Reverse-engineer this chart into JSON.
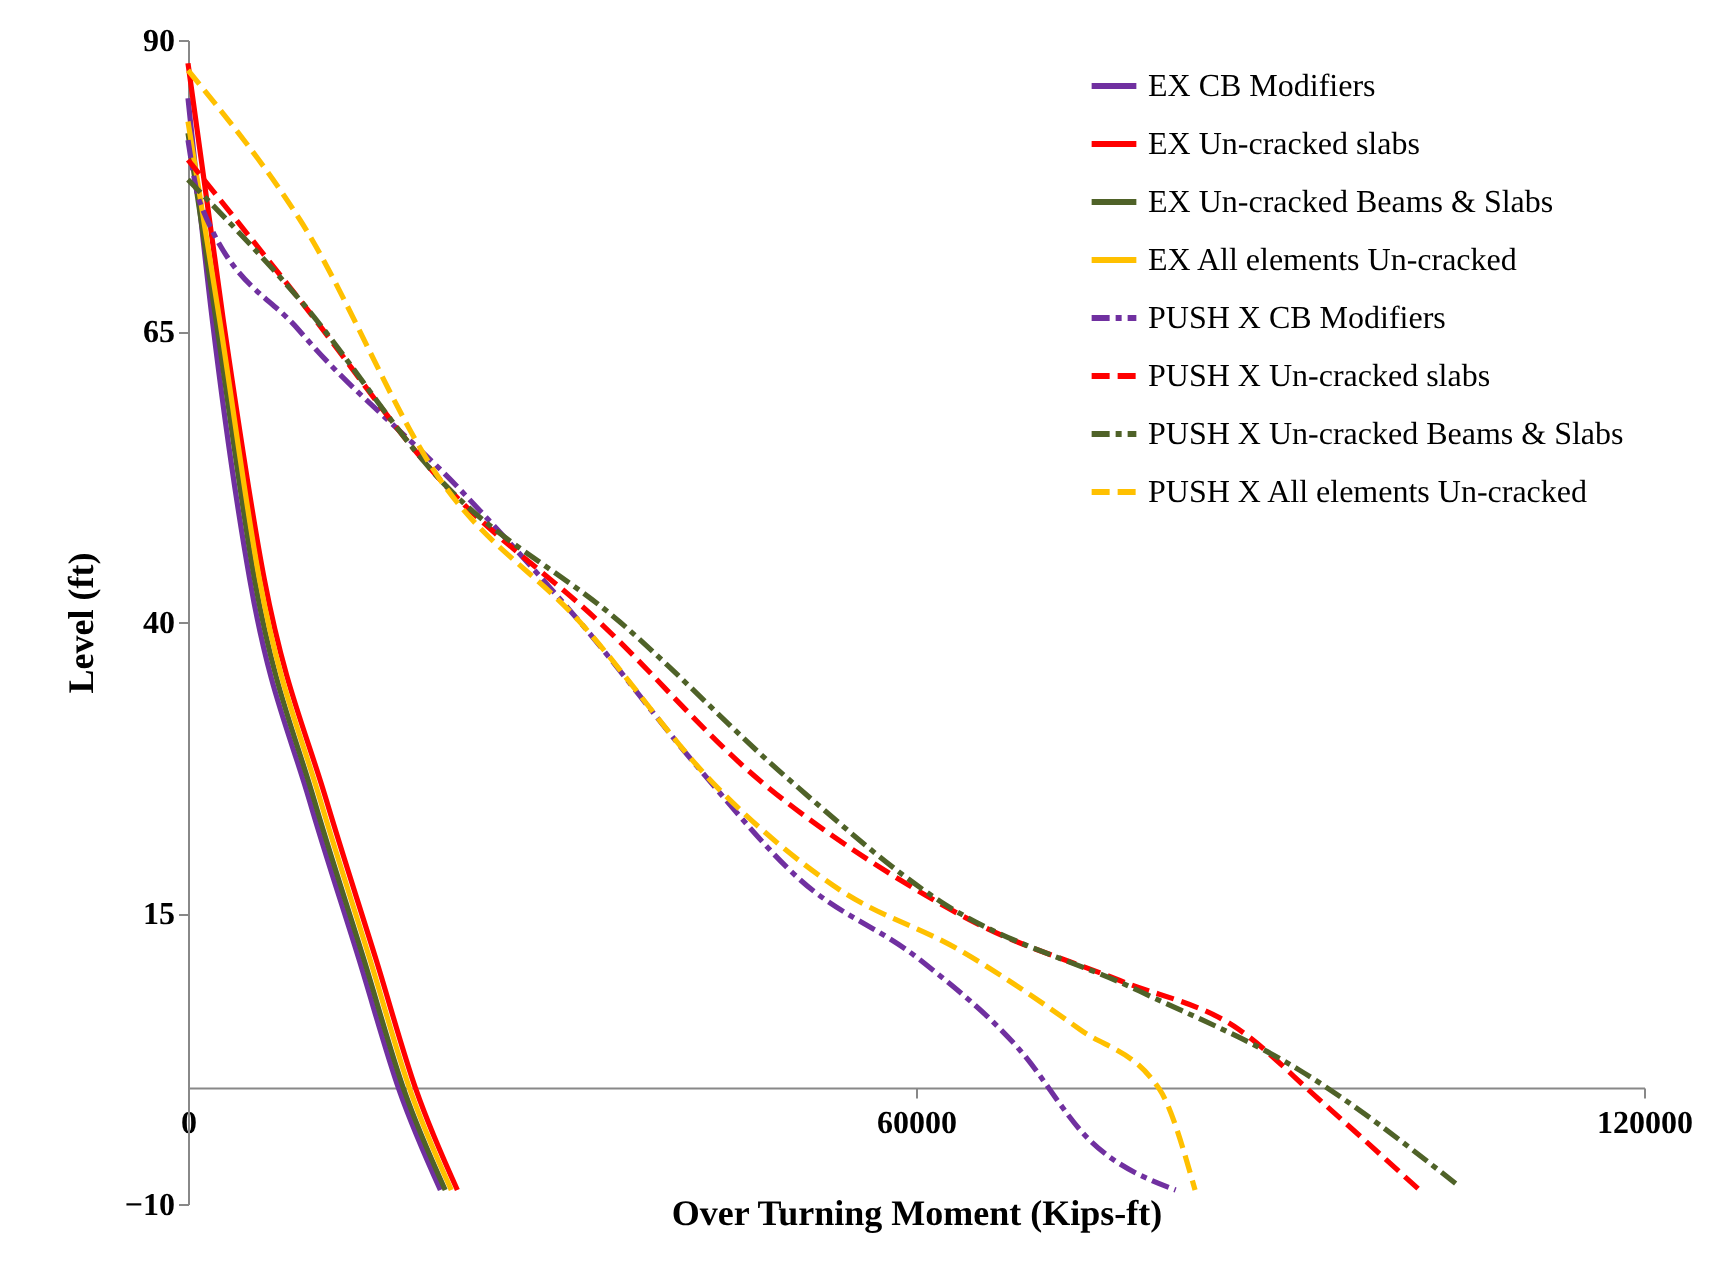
{
  "chart_data": {
    "type": "line",
    "xlabel": "Over Turning Moment (Kips-ft)",
    "ylabel": "Level (ft)",
    "xlim": [
      0,
      120000
    ],
    "xticks": [
      0,
      60000,
      120000
    ],
    "ylim": [
      -10,
      90
    ],
    "yticks": [
      -10,
      15,
      40,
      65,
      90
    ],
    "grid": false,
    "legend": "top right",
    "marker": "none",
    "series": [
      {
        "name": "EX CB Modifiers",
        "color": "#7030a0",
        "line_style": "solid",
        "x": [
          0,
          2000,
          5100,
          10000,
          14100,
          17400,
          20800
        ],
        "values": [
          85,
          66,
          43.6,
          24.7,
          11,
          -0.2,
          -8.8
        ]
      },
      {
        "name": "EX Un-cracked slabs",
        "color": "#ff0000",
        "line_style": "solid",
        "x": [
          0,
          2900,
          6300,
          11400,
          15500,
          18800,
          22200
        ],
        "values": [
          88,
          66,
          43.6,
          24.7,
          11,
          -0.2,
          -8.8
        ]
      },
      {
        "name": "EX Un-cracked Beams & Slabs",
        "color": "#4f6228",
        "line_style": "solid",
        "x": [
          0,
          2300,
          5500,
          10400,
          14500,
          17800,
          21200
        ],
        "values": [
          82,
          66,
          43.6,
          24.7,
          11,
          -0.2,
          -8.8
        ]
      },
      {
        "name": "EX All elements Un-cracked",
        "color": "#ffc000",
        "line_style": "solid",
        "x": [
          0,
          2600,
          5900,
          10900,
          15000,
          18300,
          21700
        ],
        "values": [
          83,
          66,
          43.6,
          24.7,
          11,
          -0.2,
          -8.8
        ]
      },
      {
        "name": "PUSH X CB Modifiers",
        "color": "#7030a0",
        "line_style": "dashdot",
        "x": [
          0,
          1000,
          9200,
          22400,
          32300,
          42200,
          50400,
          60300,
          68500,
          74300,
          81400
        ],
        "values": [
          81.4,
          76,
          65,
          51.4,
          40,
          27.3,
          17.9,
          11,
          3.3,
          -4.5,
          -8.8
        ]
      },
      {
        "name": "PUSH X Un-cracked slabs",
        "color": "#ff0000",
        "line_style": "dashed",
        "x": [
          0,
          9200,
          20800,
          33900,
          47100,
          58600,
          65200,
          76800,
          86600,
          93200,
          101500
        ],
        "values": [
          79.7,
          67.7,
          52.2,
          40,
          26.4,
          17.9,
          14,
          9.2,
          5,
          -1,
          -8.8
        ]
      },
      {
        "name": "PUSH X Un-cracked Beams & Slabs",
        "color": "#4f6228",
        "line_style": "dashdot",
        "x": [
          0,
          9200,
          20800,
          35600,
          49600,
          62000,
          78400,
          91600,
          104800
        ],
        "values": [
          78,
          67.7,
          52.2,
          40,
          26.4,
          16,
          8.3,
          1.5,
          -8.5
        ]
      },
      {
        "name": "PUSH X All elements Un-cracked",
        "color": "#ffc000",
        "line_style": "dashed",
        "x": [
          0,
          9200,
          20800,
          32300,
          43800,
          53700,
          63600,
          73500,
          80100,
          83000
        ],
        "values": [
          87.4,
          74.6,
          52.2,
          40,
          25.6,
          17,
          11.8,
          5,
          -0.2,
          -8.8
        ]
      }
    ]
  }
}
